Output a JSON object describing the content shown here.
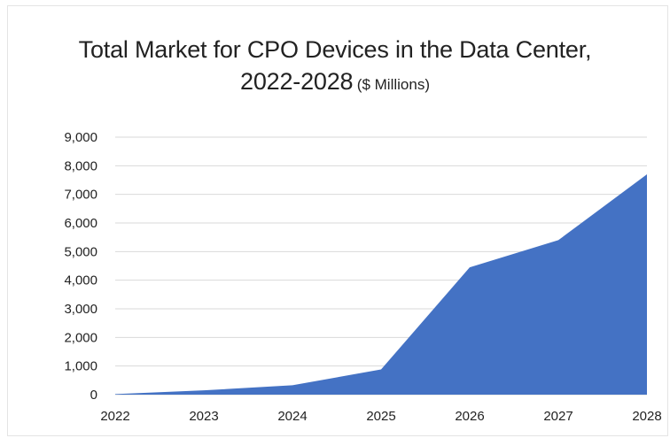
{
  "chart_data": {
    "type": "area",
    "title": "Total Market for CPO Devices in the Data Center,",
    "title_line2": "2022-2028",
    "title_unit": "($ Millions)",
    "categories": [
      "2022",
      "2023",
      "2024",
      "2025",
      "2026",
      "2027",
      "2028"
    ],
    "series": [
      {
        "values": [
          20,
          150,
          330,
          880,
          4450,
          5400,
          7700
        ]
      }
    ],
    "ylim": [
      0,
      9000
    ],
    "yticks": [
      "0",
      "1,000",
      "2,000",
      "3,000",
      "4,000",
      "5,000",
      "6,000",
      "7,000",
      "8,000",
      "9,000"
    ],
    "grid": true,
    "legend": "none",
    "colors": {
      "area": "#4472c4",
      "grid": "#d9d9d9"
    }
  }
}
